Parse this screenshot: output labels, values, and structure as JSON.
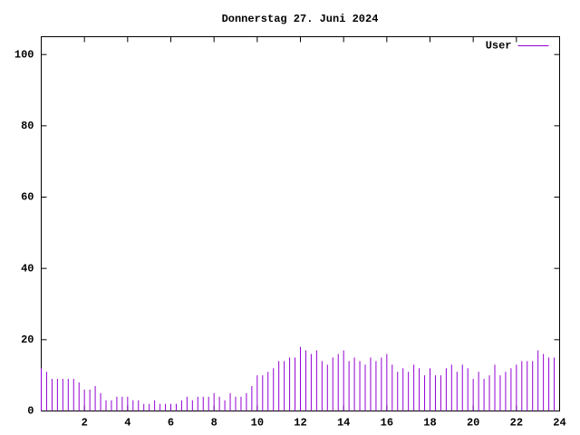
{
  "chart_data": {
    "type": "impulses",
    "title": "Donnerstag 27. Juni 2024",
    "x": [
      0,
      0.25,
      0.5,
      0.75,
      1,
      1.25,
      1.5,
      1.75,
      2,
      2.25,
      2.5,
      2.75,
      3,
      3.25,
      3.5,
      3.75,
      4,
      4.25,
      4.5,
      4.75,
      5,
      5.25,
      5.5,
      5.75,
      6,
      6.25,
      6.5,
      6.75,
      7,
      7.25,
      7.5,
      7.75,
      8,
      8.25,
      8.5,
      8.75,
      9,
      9.25,
      9.5,
      9.75,
      10,
      10.25,
      10.5,
      10.75,
      11,
      11.25,
      11.5,
      11.75,
      12,
      12.25,
      12.5,
      12.75,
      13,
      13.25,
      13.5,
      13.75,
      14,
      14.25,
      14.5,
      14.75,
      15,
      15.25,
      15.5,
      15.75,
      16,
      16.25,
      16.5,
      16.75,
      17,
      17.25,
      17.5,
      17.75,
      18,
      18.25,
      18.5,
      18.75,
      19,
      19.25,
      19.5,
      19.75,
      20,
      20.25,
      20.5,
      20.75,
      21,
      21.25,
      21.5,
      21.75,
      22,
      22.25,
      22.5,
      22.75,
      23,
      23.25,
      23.5,
      23.75
    ],
    "series": [
      {
        "name": "User",
        "color": "#9400d3",
        "values": [
          12,
          11,
          9,
          9,
          9,
          9,
          9,
          8,
          6,
          6,
          7,
          5,
          3,
          3,
          4,
          4,
          4,
          3,
          3,
          2,
          2,
          3,
          2,
          2,
          2,
          2,
          3,
          4,
          3,
          4,
          4,
          4,
          5,
          4,
          3,
          5,
          4,
          4,
          5,
          7,
          10,
          10,
          11,
          12,
          14,
          14,
          15,
          15,
          18,
          17,
          16,
          17,
          14,
          13,
          15,
          16,
          17,
          14,
          15,
          14,
          13,
          15,
          14,
          15,
          16,
          13,
          11,
          12,
          11,
          13,
          12,
          10,
          12,
          10,
          10,
          12,
          13,
          11,
          13,
          12,
          9,
          11,
          9,
          10,
          13,
          10,
          11,
          12,
          13,
          14,
          14,
          14,
          17,
          16,
          15,
          15
        ]
      }
    ],
    "xlim": [
      0,
      24
    ],
    "ylim": [
      0,
      105
    ],
    "xticks": [
      2,
      4,
      6,
      8,
      10,
      12,
      14,
      16,
      18,
      20,
      22,
      24
    ],
    "yticks": [
      0,
      20,
      40,
      60,
      80,
      100
    ],
    "legend": "top-right"
  }
}
